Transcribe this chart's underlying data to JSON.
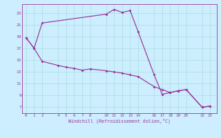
{
  "xlabel": "Windchill (Refroidissement éolien,°C)",
  "bg_color": "#cceeff",
  "grid_color": "#aadddd",
  "line_color": "#993399",
  "curve1_x": [
    0,
    1,
    2,
    10,
    11,
    12,
    13,
    14,
    16,
    17,
    18,
    19,
    20,
    22,
    23
  ],
  "curve1_y": [
    18.8,
    17.0,
    21.3,
    22.8,
    23.6,
    23.1,
    23.4,
    19.8,
    12.5,
    9.2,
    9.5,
    9.8,
    10.0,
    7.0,
    7.2
  ],
  "curve2_x": [
    0,
    1,
    2,
    4,
    5,
    6,
    7,
    8,
    10,
    11,
    12,
    13,
    14,
    16,
    17,
    18,
    19,
    20,
    22,
    23
  ],
  "curve2_y": [
    18.8,
    17.0,
    14.8,
    14.1,
    13.8,
    13.6,
    13.3,
    13.5,
    13.2,
    13.0,
    12.8,
    12.5,
    12.2,
    10.5,
    10.0,
    9.5,
    9.8,
    10.0,
    7.0,
    7.2
  ],
  "xtick_vals": [
    0,
    1,
    2,
    4,
    5,
    6,
    7,
    8,
    10,
    11,
    12,
    13,
    14,
    16,
    17,
    18,
    19,
    20,
    22,
    23
  ],
  "xtick_labels": [
    "0",
    "1",
    "2",
    "4",
    "5",
    "6",
    "7",
    "8",
    "10",
    "11",
    "12",
    "13",
    "14",
    "16",
    "17",
    "18",
    "19",
    "20",
    "22",
    "23"
  ],
  "ytick_vals": [
    7,
    9,
    11,
    13,
    15,
    17,
    19,
    21,
    23
  ],
  "ytick_labels": [
    "7",
    "9",
    "11",
    "13",
    "15",
    "17",
    "19",
    "21",
    "23"
  ],
  "xlim": [
    -0.5,
    23.8
  ],
  "ylim": [
    6.0,
    24.5
  ]
}
